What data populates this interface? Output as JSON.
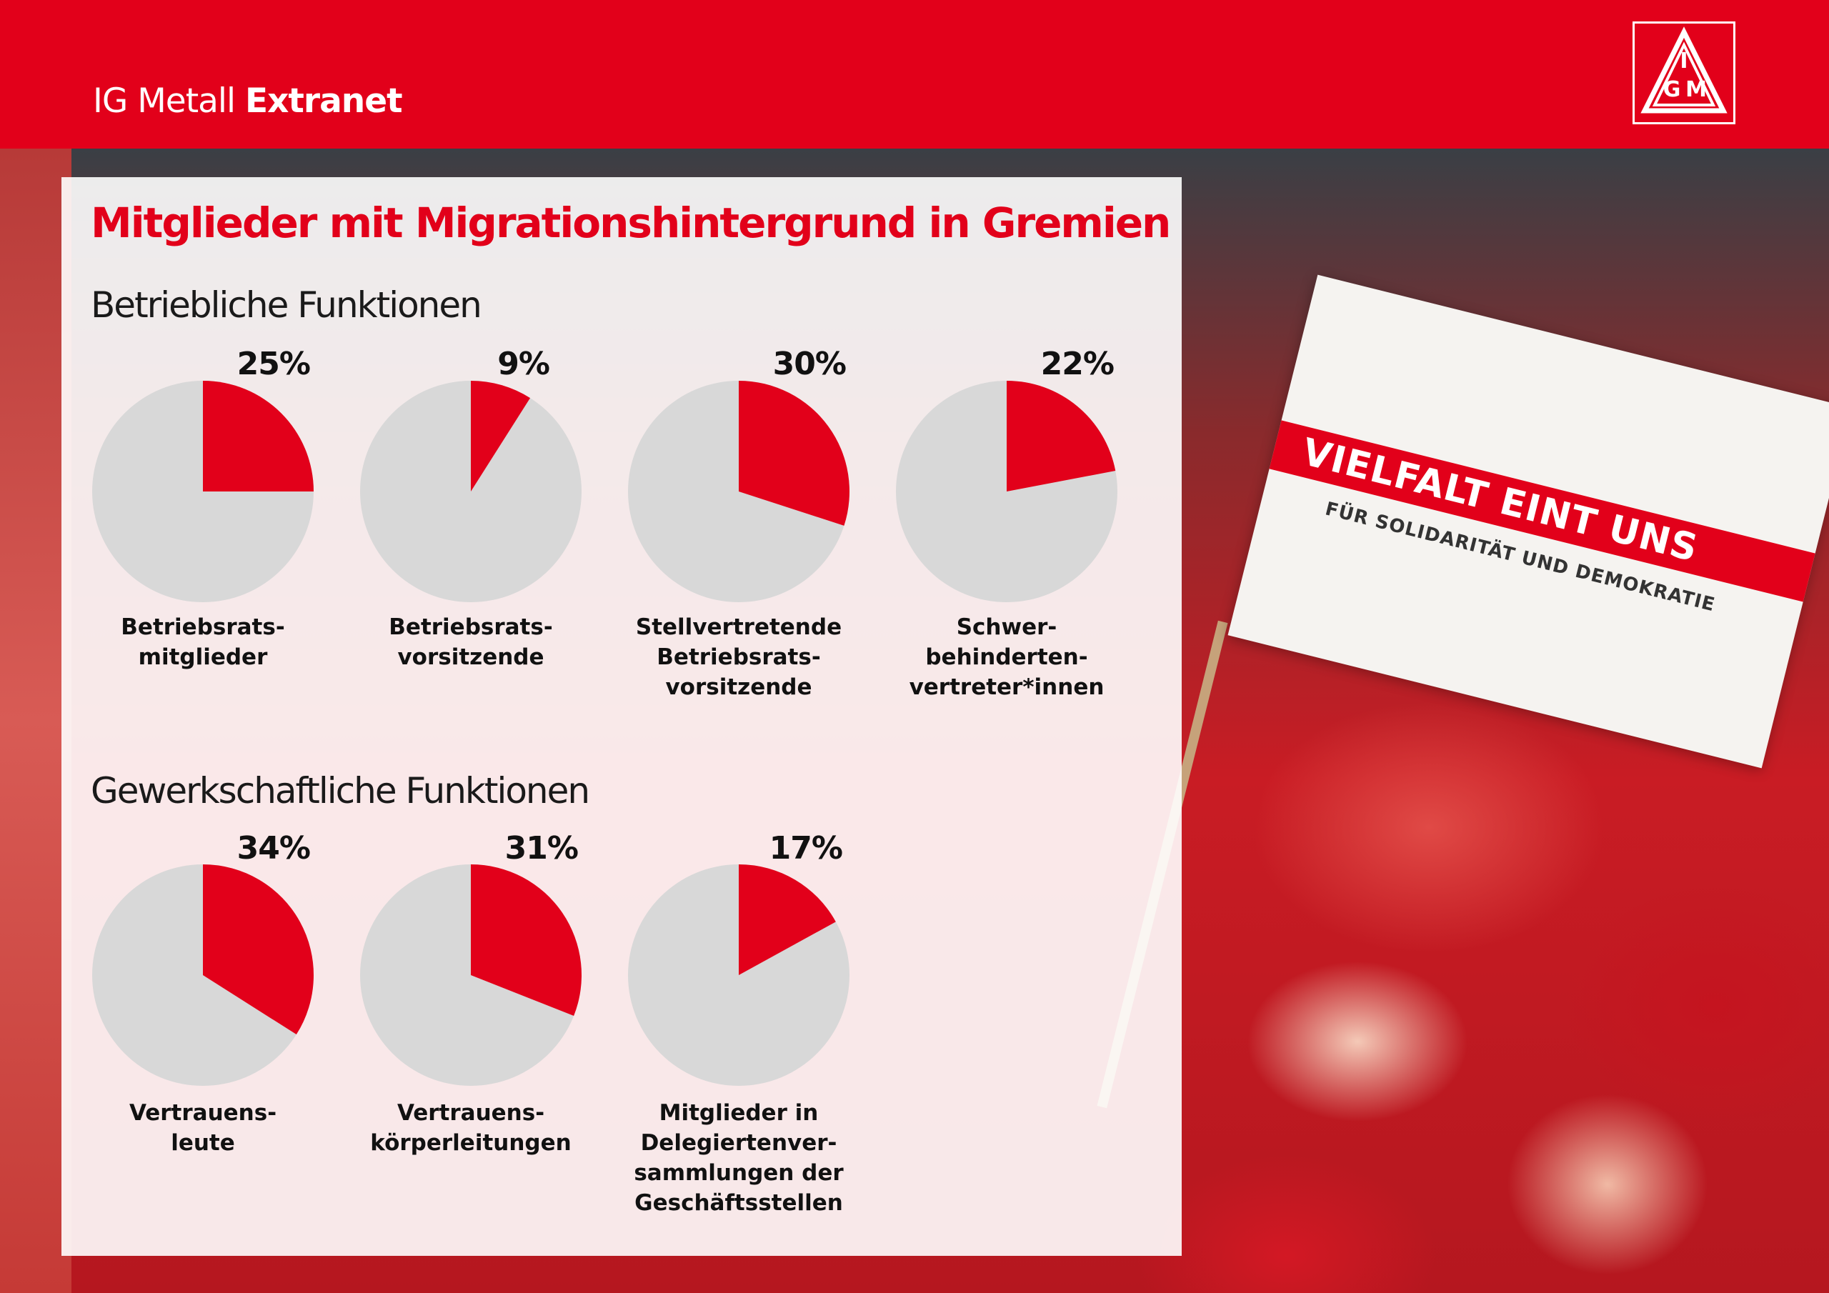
{
  "header": {
    "brand_regular": "IG Metall",
    "brand_bold": "Extranet",
    "logo_letters": "IGM"
  },
  "photo": {
    "flag_slogan": "VIELFALT EINT UNS",
    "flag_subtitle": "FÜR SOLIDARITÄT UND DEMOKRATIE"
  },
  "colors": {
    "accent": "#e2001a",
    "pie_rest": "#d8d8d8"
  },
  "chart_data": [
    {
      "type": "pie",
      "title": "Mitglieder mit Migrationshintergrund in Gremien",
      "subtitle": "Betriebliche Funktionen",
      "unit": "%",
      "categories": [
        [
          "Betriebsrats-",
          "mitglieder"
        ],
        [
          "Betriebsrats-",
          "vorsitzende"
        ],
        [
          "Stellvertretende",
          "Betriebsrats-",
          "vorsitzende"
        ],
        [
          "Schwer-",
          "behinderten-",
          "vertreter*innen"
        ]
      ],
      "values": [
        25,
        9,
        30,
        22
      ],
      "value_labels": [
        "25%",
        "9%",
        "30%",
        "22%"
      ]
    },
    {
      "type": "pie",
      "subtitle": "Gewerkschaftliche Funktionen",
      "unit": "%",
      "categories": [
        [
          "Vertrauens-",
          "leute"
        ],
        [
          "Vertrauens-",
          "körperleitungen"
        ],
        [
          "Mitglieder in",
          "Delegiertenver-",
          "sammlungen der",
          "Geschäftsstellen"
        ]
      ],
      "values": [
        34,
        31,
        17
      ],
      "value_labels": [
        "34%",
        "31%",
        "17%"
      ]
    }
  ]
}
